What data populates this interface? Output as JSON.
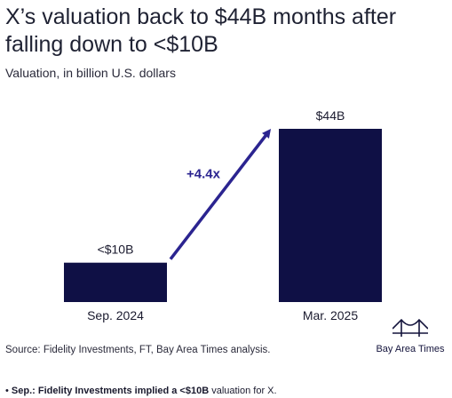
{
  "chart_data": {
    "type": "bar",
    "title": "X’s valuation back to $44B months after falling down to <$10B",
    "subtitle": "Valuation, in billion U.S. dollars",
    "categories": [
      "Sep. 2024",
      "Mar. 2025"
    ],
    "values": [
      10,
      44
    ],
    "data_labels": [
      "<$10B",
      "$44B"
    ],
    "annotation": "+4.4x",
    "bar_color": "#0f1045",
    "arrow_color": "#2b2490",
    "grid": false
  },
  "source": "Source: Fidelity Investments, FT, Bay Area Times analysis.",
  "brand": {
    "name": "Bay Area Times",
    "icon": "bridge-icon"
  },
  "note": {
    "prefix": "Sep.: Fidelity Investments implied a <$10B",
    "suffix": " valuation for X."
  }
}
